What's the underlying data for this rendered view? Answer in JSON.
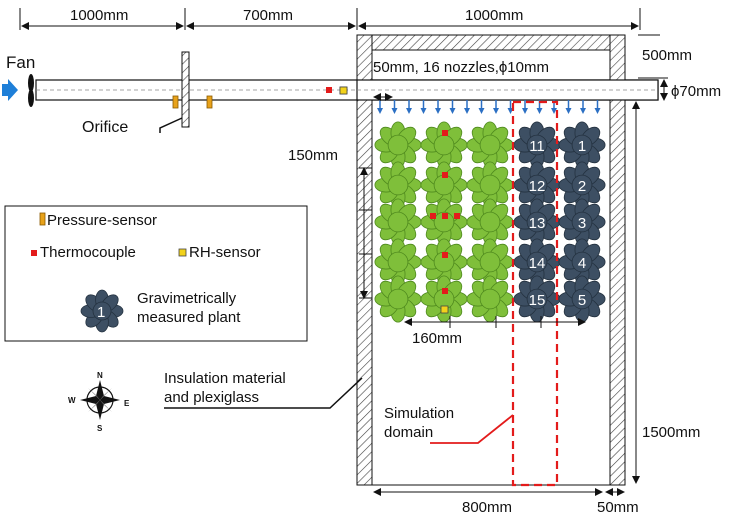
{
  "dimensions": {
    "top_left": "1000mm",
    "top_mid": "700mm",
    "top_right": "1000mm",
    "height_right": "500mm",
    "pipe_dia": "ϕ70mm",
    "row_spacing": "150mm",
    "col_spacing": "160mm",
    "chamber_height": "1500mm",
    "chamber_width": "800mm",
    "wall_thickness": "50mm"
  },
  "labels": {
    "fan": "Fan",
    "orifice": "Orifice",
    "nozzles": "50mm, 16 nozzles,ϕ10mm",
    "insulation_line1": "Insulation material",
    "insulation_line2": "and plexiglass",
    "simulation_line1": "Simulation",
    "simulation_line2": "domain"
  },
  "legend": {
    "pressure": "Pressure-sensor",
    "thermocouple": "Thermocouple",
    "rh": "RH-sensor",
    "plant_line1": "Gravimetrically",
    "plant_line2": "measured plant",
    "plant_number": "1"
  },
  "compass": {
    "n": "N",
    "s": "S",
    "e": "E",
    "w": "W"
  },
  "plant_numbers": [
    [
      "11",
      "1"
    ],
    [
      "12",
      "2"
    ],
    [
      "13",
      "3"
    ],
    [
      "14",
      "4"
    ],
    [
      "15",
      "5"
    ]
  ],
  "colors": {
    "green_plant": "#7fbf3a",
    "dark_plant": "#3d4f63",
    "thermocouple": "#e31b1b",
    "rh_sensor": "#f2d21b",
    "pressure_sensor": "#e8a21a",
    "nozzle_arrow": "#2b6fc4",
    "simulation_domain": "#e31b1b",
    "fan_arrow": "#1e7fd8"
  }
}
